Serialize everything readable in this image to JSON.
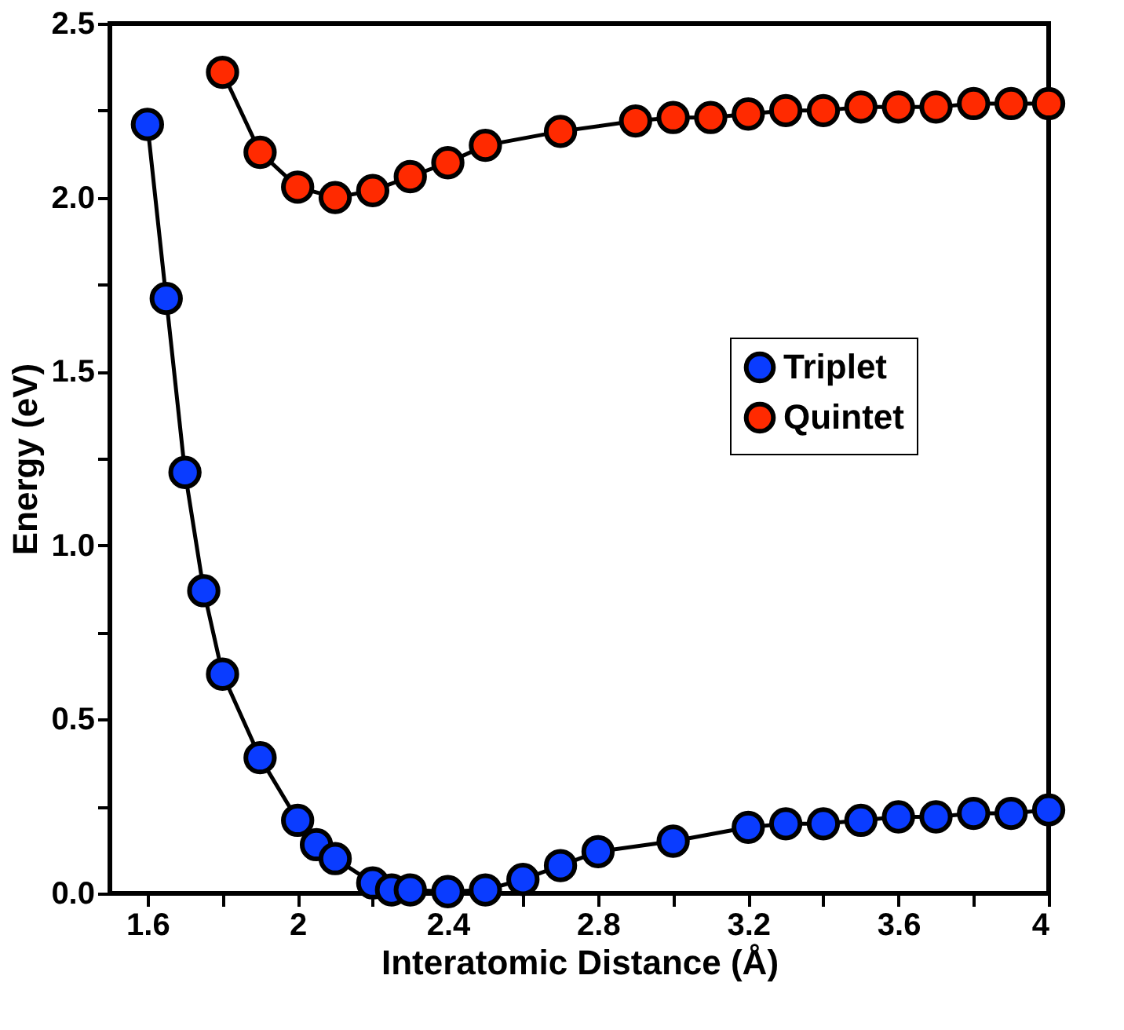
{
  "chart_data": {
    "type": "line",
    "xlabel": "Interatomic Distance (Å)",
    "ylabel": "Energy (eV)",
    "xlim": [
      1.5,
      4.0
    ],
    "ylim": [
      0,
      2.5
    ],
    "xticks": [
      1.6,
      {
        "value": 1.8,
        "label": null
      },
      2,
      {
        "value": 2.2,
        "label": null
      },
      2.4,
      {
        "value": 2.6,
        "label": null
      },
      2.8,
      {
        "value": 3.0,
        "label": null
      },
      3.2,
      {
        "value": 3.4,
        "label": null
      },
      3.6,
      {
        "value": 3.8,
        "label": null
      },
      4
    ],
    "yticks": [
      {
        "value": 0,
        "label": "0.0"
      },
      {
        "value": 0.25,
        "label": null
      },
      0.5,
      {
        "value": 0.75,
        "label": null
      },
      {
        "value": 1,
        "label": "1.0"
      },
      {
        "value": 1.25,
        "label": null
      },
      1.5,
      {
        "value": 1.75,
        "label": null
      },
      {
        "value": 2,
        "label": "2.0"
      },
      {
        "value": 2.25,
        "label": null
      },
      2.5
    ],
    "marker": "circle",
    "line_style": "solid",
    "legend": "right",
    "grid": false,
    "series": [
      {
        "name": "Triplet",
        "color": "#0a3cff",
        "x": [
          1.6,
          1.65,
          1.7,
          1.75,
          1.8,
          1.9,
          2.0,
          2.05,
          2.1,
          2.2,
          2.25,
          2.3,
          2.4,
          2.5,
          2.6,
          2.7,
          2.8,
          3.0,
          3.2,
          3.3,
          3.4,
          3.5,
          3.6,
          3.7,
          3.8,
          3.9,
          4.0
        ],
        "values": [
          2.21,
          1.71,
          1.21,
          0.87,
          0.63,
          0.39,
          0.21,
          0.14,
          0.1,
          0.03,
          0.01,
          0.01,
          0.005,
          0.01,
          0.04,
          0.08,
          0.12,
          0.15,
          0.19,
          0.2,
          0.2,
          0.21,
          0.22,
          0.22,
          0.23,
          0.23,
          0.24
        ]
      },
      {
        "name": "Quintet",
        "color": "#ff2a00",
        "x": [
          1.8,
          1.9,
          2.0,
          2.1,
          2.2,
          2.3,
          2.4,
          2.5,
          2.7,
          2.9,
          3.0,
          3.1,
          3.2,
          3.3,
          3.4,
          3.5,
          3.6,
          3.7,
          3.8,
          3.9,
          4.0
        ],
        "values": [
          2.36,
          2.13,
          2.03,
          2.0,
          2.02,
          2.06,
          2.1,
          2.15,
          2.19,
          2.22,
          2.23,
          2.23,
          2.24,
          2.25,
          2.25,
          2.26,
          2.26,
          2.26,
          2.27,
          2.27,
          2.27
        ]
      }
    ]
  }
}
